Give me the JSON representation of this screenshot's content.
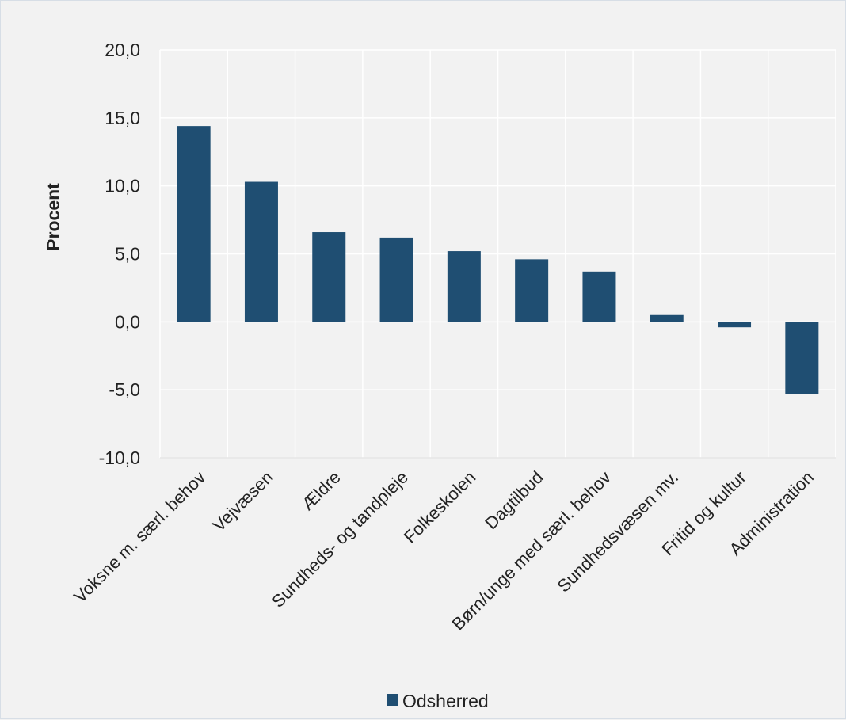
{
  "chart_data": {
    "type": "bar",
    "ylabel": "Procent",
    "ylim": [
      -10,
      20
    ],
    "yticks": [
      20,
      15,
      10,
      5,
      0,
      -5,
      -10
    ],
    "ytick_labels": [
      "20,0",
      "15,0",
      "10,0",
      "5,0",
      "0,0",
      "-5,0",
      "-10,0"
    ],
    "grid": true,
    "legend_position": "bottom",
    "categories": [
      "Voksne m. særl. behov",
      "Vejvæsen",
      "Ældre",
      "Sundheds- og tandpleje",
      "Folkeskolen",
      "Dagtilbud",
      "Børn/unge med særl. behov",
      "Sundhedsvæsen mv.",
      "Fritid og kultur",
      "Administration"
    ],
    "series": [
      {
        "name": "Odsherred",
        "color": "#1f4e72",
        "values": [
          14.4,
          10.3,
          6.6,
          6.2,
          5.2,
          4.6,
          3.7,
          0.5,
          -0.4,
          -5.3
        ]
      }
    ]
  }
}
